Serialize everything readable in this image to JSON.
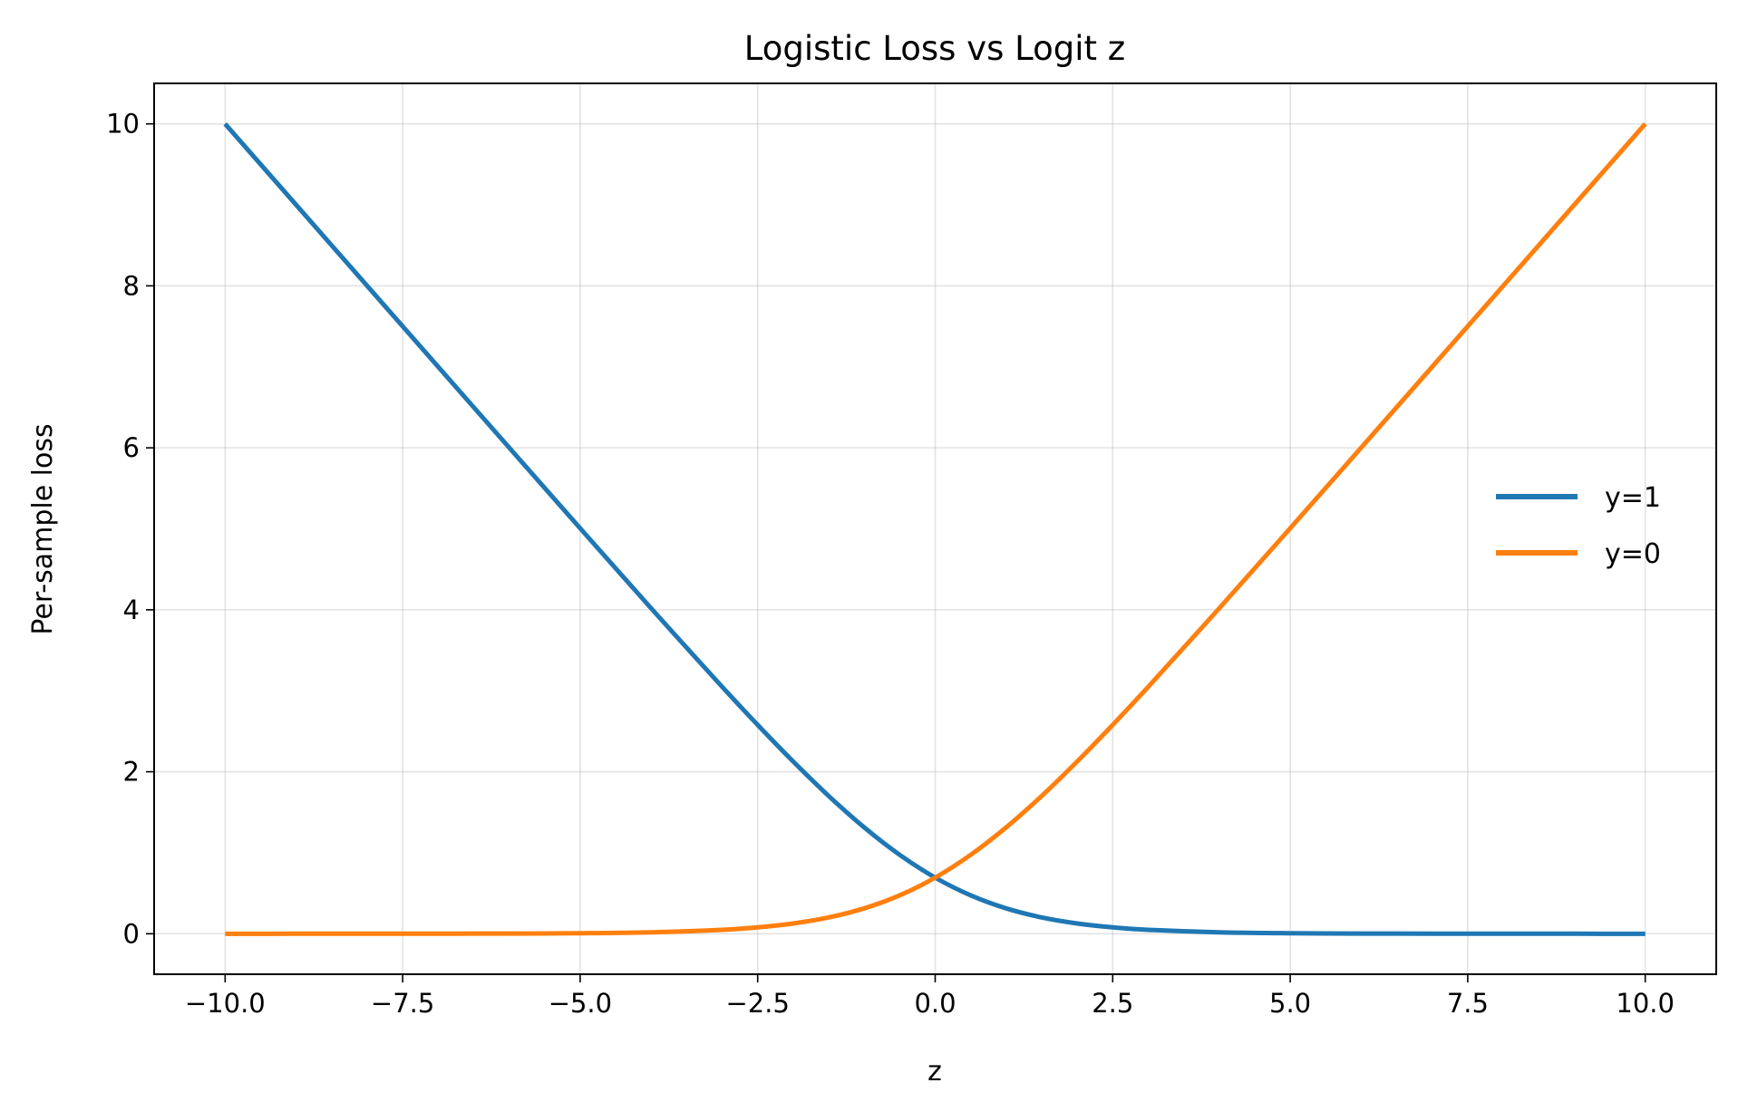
{
  "chart_data": {
    "type": "line",
    "title": "Logistic Loss vs Logit z",
    "xlabel": "z",
    "ylabel": "Per-sample loss",
    "xlim": [
      -11.0,
      11.0
    ],
    "ylim": [
      -0.5,
      10.5
    ],
    "x_ticks": [
      -10.0,
      -7.5,
      -5.0,
      -2.5,
      0.0,
      2.5,
      5.0,
      7.5,
      10.0
    ],
    "x_tick_labels": [
      "−10.0",
      "−7.5",
      "−5.0",
      "−2.5",
      "0.0",
      "2.5",
      "5.0",
      "7.5",
      "10.0"
    ],
    "y_ticks": [
      0,
      2,
      4,
      6,
      8,
      10
    ],
    "y_tick_labels": [
      "0",
      "2",
      "4",
      "6",
      "8",
      "10"
    ],
    "grid": true,
    "legend_position": "center-right",
    "x": [
      -10.0,
      -9.0,
      -8.0,
      -7.0,
      -6.0,
      -5.0,
      -4.0,
      -3.0,
      -2.5,
      -2.0,
      -1.5,
      -1.0,
      -0.5,
      0.0,
      0.5,
      1.0,
      1.5,
      2.0,
      2.5,
      3.0,
      4.0,
      5.0,
      6.0,
      7.0,
      8.0,
      9.0,
      10.0
    ],
    "series": [
      {
        "name": "y=1",
        "color": "#1f77b4",
        "values": [
          10.0,
          9.0001,
          8.0003,
          7.0009,
          6.0025,
          5.0067,
          4.0181,
          3.0486,
          2.5789,
          2.1269,
          1.7014,
          1.3133,
          0.9741,
          0.6931,
          0.4741,
          0.3133,
          0.2014,
          0.1269,
          0.0789,
          0.0486,
          0.0181,
          0.0067,
          0.0025,
          0.0009,
          0.0003,
          0.0001,
          0.0
        ]
      },
      {
        "name": "y=0",
        "color": "#ff7f0e",
        "values": [
          0.0,
          0.0001,
          0.0003,
          0.0009,
          0.0025,
          0.0067,
          0.0181,
          0.0486,
          0.0789,
          0.1269,
          0.2014,
          0.3133,
          0.4741,
          0.6931,
          0.9741,
          1.3133,
          1.7014,
          2.1269,
          2.5789,
          3.0486,
          4.0181,
          5.0067,
          6.0025,
          7.0009,
          8.0003,
          9.0001,
          10.0
        ]
      }
    ]
  }
}
